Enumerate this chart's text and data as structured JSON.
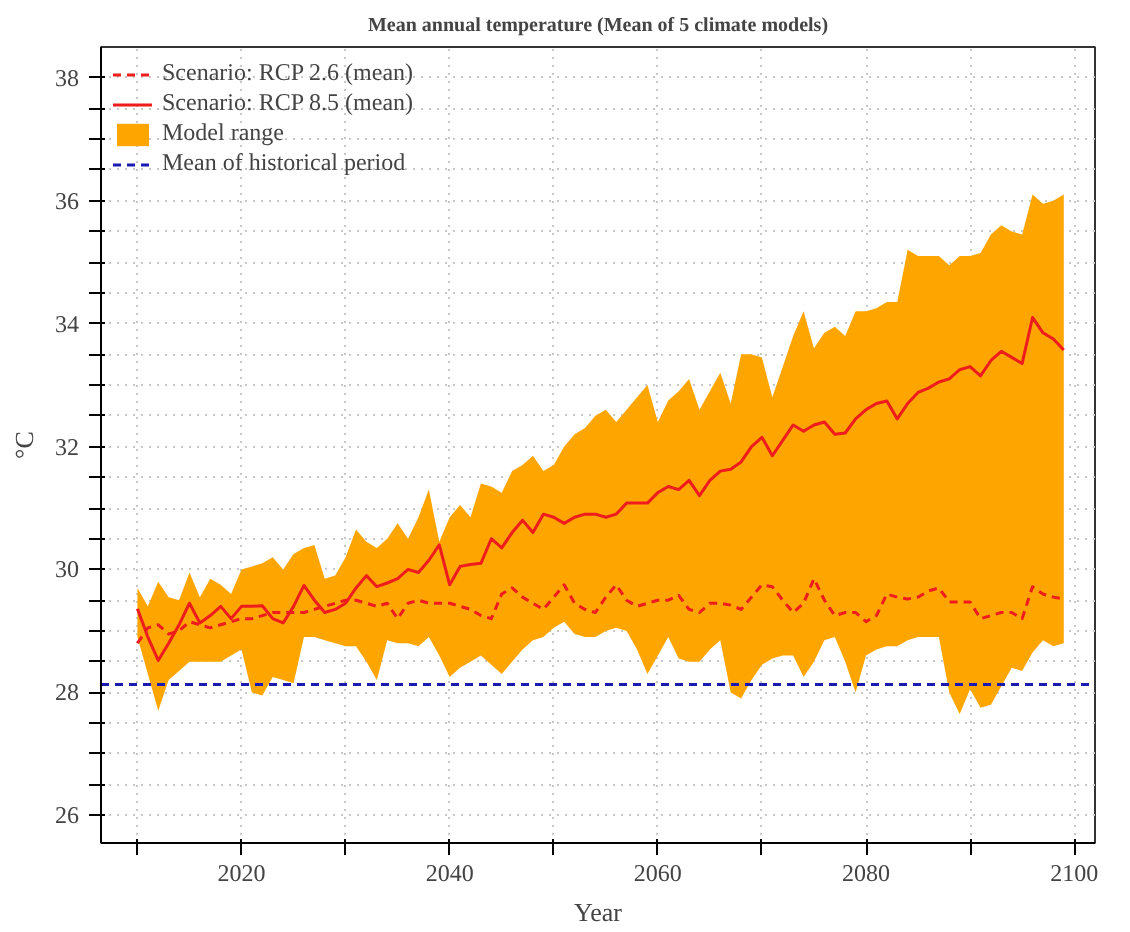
{
  "chart_data": {
    "type": "line",
    "title": "Mean annual temperature (Mean of 5 climate models)",
    "xlabel": "Year",
    "ylabel": "°C",
    "x": [
      2010,
      2011,
      2012,
      2013,
      2014,
      2015,
      2016,
      2017,
      2018,
      2019,
      2020,
      2021,
      2022,
      2023,
      2024,
      2025,
      2026,
      2027,
      2028,
      2029,
      2030,
      2031,
      2032,
      2033,
      2034,
      2035,
      2036,
      2037,
      2038,
      2039,
      2040,
      2041,
      2042,
      2043,
      2044,
      2045,
      2046,
      2047,
      2048,
      2049,
      2050,
      2051,
      2052,
      2053,
      2054,
      2055,
      2056,
      2057,
      2058,
      2059,
      2060,
      2061,
      2062,
      2063,
      2064,
      2065,
      2066,
      2067,
      2068,
      2069,
      2070,
      2071,
      2072,
      2073,
      2074,
      2075,
      2076,
      2077,
      2078,
      2079,
      2080,
      2081,
      2082,
      2083,
      2084,
      2085,
      2086,
      2087,
      2088,
      2089,
      2090,
      2091,
      2092,
      2093,
      2094,
      2095,
      2096,
      2097,
      2098,
      2099
    ],
    "series": [
      {
        "name": "Scenario: RCP 2.6 (mean)",
        "color": "#ee1c1c",
        "line_style": "dashed",
        "values": [
          28.8,
          29.05,
          29.1,
          28.95,
          29.0,
          29.15,
          29.1,
          29.05,
          29.1,
          29.15,
          29.2,
          29.2,
          29.25,
          29.3,
          29.3,
          29.3,
          29.3,
          29.35,
          29.4,
          29.45,
          29.5,
          29.5,
          29.45,
          29.4,
          29.45,
          29.2,
          29.45,
          29.5,
          29.45,
          29.45,
          29.45,
          29.4,
          29.35,
          29.25,
          29.2,
          29.6,
          29.7,
          29.55,
          29.45,
          29.35,
          29.55,
          29.75,
          29.45,
          29.35,
          29.3,
          29.55,
          29.75,
          29.5,
          29.4,
          29.45,
          29.5,
          29.5,
          29.58,
          29.35,
          29.3,
          29.45,
          29.45,
          29.42,
          29.35,
          29.55,
          29.75,
          29.72,
          29.5,
          29.3,
          29.45,
          29.85,
          29.5,
          29.25,
          29.3,
          29.3,
          29.15,
          29.25,
          29.6,
          29.55,
          29.52,
          29.55,
          29.65,
          29.7,
          29.47,
          29.47,
          29.47,
          29.2,
          29.25,
          29.3,
          29.3,
          29.2,
          29.72,
          29.6,
          29.55,
          29.52
        ]
      },
      {
        "name": "Scenario: RCP 8.5 (mean)",
        "color": "#ee1c1c",
        "line_style": "solid",
        "values": [
          29.36,
          28.9,
          28.52,
          28.8,
          29.1,
          29.45,
          29.13,
          29.25,
          29.4,
          29.2,
          29.4,
          29.4,
          29.41,
          29.2,
          29.13,
          29.4,
          29.74,
          29.5,
          29.3,
          29.35,
          29.45,
          29.7,
          29.9,
          29.72,
          29.78,
          29.85,
          30.0,
          29.95,
          30.15,
          30.4,
          29.75,
          30.05,
          30.08,
          30.1,
          30.5,
          30.35,
          30.6,
          30.8,
          30.6,
          30.9,
          30.85,
          30.75,
          30.85,
          30.9,
          30.9,
          30.85,
          30.9,
          31.08,
          31.08,
          31.08,
          31.25,
          31.35,
          31.3,
          31.45,
          31.2,
          31.45,
          31.6,
          31.63,
          31.75,
          32.0,
          32.15,
          31.85,
          32.1,
          32.35,
          32.25,
          32.35,
          32.4,
          32.2,
          32.22,
          32.45,
          32.6,
          32.7,
          32.74,
          32.45,
          32.7,
          32.88,
          32.95,
          33.05,
          33.1,
          33.25,
          33.3,
          33.15,
          33.4,
          33.55,
          33.45,
          33.35,
          34.1,
          33.85,
          33.75,
          33.57
        ]
      },
      {
        "name": "Model range",
        "type": "area",
        "color": "#ffa500",
        "values": [
          null,
          null,
          null,
          null,
          null,
          null,
          null,
          null,
          null,
          null,
          null,
          null,
          null,
          null,
          null,
          null,
          null,
          null,
          null,
          null,
          null,
          null,
          null,
          null,
          null,
          null,
          null,
          null,
          null,
          null,
          null,
          null,
          null,
          null,
          null,
          null,
          null,
          null,
          null,
          null,
          null,
          null,
          null,
          null,
          null,
          null,
          null,
          null,
          null,
          null,
          null,
          null,
          null,
          null,
          null,
          null,
          null,
          null,
          null,
          null,
          null,
          null,
          null,
          null,
          null,
          null,
          null,
          null,
          null,
          null,
          null,
          null,
          null,
          null,
          null,
          null,
          null,
          null,
          null,
          null,
          null,
          null,
          null,
          null,
          null,
          null,
          null,
          null,
          null,
          null
        ],
        "lower": [
          28.9,
          28.3,
          27.7,
          28.2,
          28.35,
          28.5,
          28.5,
          28.5,
          28.5,
          28.6,
          28.7,
          28.0,
          27.95,
          28.25,
          28.2,
          28.15,
          28.9,
          28.9,
          28.85,
          28.8,
          28.75,
          28.75,
          28.5,
          28.2,
          28.85,
          28.8,
          28.8,
          28.75,
          28.9,
          28.6,
          28.25,
          28.4,
          28.5,
          28.6,
          28.45,
          28.3,
          28.5,
          28.7,
          28.85,
          28.9,
          29.05,
          29.15,
          28.95,
          28.9,
          28.9,
          29.0,
          29.05,
          29.0,
          28.7,
          28.3,
          28.6,
          28.9,
          28.55,
          28.5,
          28.5,
          28.7,
          28.85,
          28.0,
          27.9,
          28.2,
          28.45,
          28.55,
          28.6,
          28.6,
          28.25,
          28.5,
          28.85,
          28.9,
          28.5,
          28.0,
          28.6,
          28.7,
          28.75,
          28.75,
          28.85,
          28.9,
          28.9,
          28.9,
          28.0,
          27.65,
          28.05,
          27.75,
          27.8,
          28.1,
          28.4,
          28.35,
          28.65,
          28.85,
          28.75,
          28.8
        ],
        "upper": [
          29.7,
          29.4,
          29.8,
          29.55,
          29.5,
          29.95,
          29.55,
          29.85,
          29.75,
          29.6,
          30.0,
          30.05,
          30.1,
          30.2,
          30.0,
          30.25,
          30.35,
          30.4,
          29.85,
          29.9,
          30.2,
          30.65,
          30.45,
          30.35,
          30.5,
          30.75,
          30.5,
          30.85,
          31.3,
          30.45,
          30.85,
          31.05,
          30.85,
          31.4,
          31.35,
          31.25,
          31.6,
          31.7,
          31.85,
          31.6,
          31.7,
          32.0,
          32.2,
          32.3,
          32.5,
          32.6,
          32.4,
          32.6,
          32.8,
          33.0,
          32.4,
          32.75,
          32.9,
          33.1,
          32.6,
          32.9,
          33.2,
          32.7,
          33.5,
          33.5,
          33.45,
          32.8,
          33.3,
          33.8,
          34.2,
          33.6,
          33.85,
          33.95,
          33.8,
          34.2,
          34.2,
          34.25,
          34.35,
          34.35,
          35.2,
          35.1,
          35.1,
          35.1,
          34.95,
          35.1,
          35.1,
          35.15,
          35.45,
          35.6,
          35.5,
          35.45,
          36.1,
          35.95,
          36.0,
          36.1
        ]
      }
    ],
    "ref_lines": [
      {
        "axis": "y",
        "value": 28.13,
        "label": "Mean of historical period",
        "color": "#1a1ab0",
        "line_style": "dashed"
      }
    ],
    "xlim": [
      2006.5,
      2102
    ],
    "ylim": [
      25.55,
      38.5
    ],
    "xticks": [
      {
        "value": 2010,
        "label": null
      },
      2020,
      {
        "value": 2030,
        "label": null
      },
      2040,
      {
        "value": 2050,
        "label": null
      },
      2060,
      {
        "value": 2070,
        "label": null
      },
      2080,
      {
        "value": 2090,
        "label": null
      },
      2100
    ],
    "yticks": [
      26,
      {
        "value": 26.5,
        "label": null
      },
      {
        "value": 27,
        "label": null
      },
      {
        "value": 27.5,
        "label": null
      },
      28,
      {
        "value": 28.5,
        "label": null
      },
      {
        "value": 29,
        "label": null
      },
      {
        "value": 29.5,
        "label": null
      },
      30,
      {
        "value": 30.5,
        "label": null
      },
      {
        "value": 31,
        "label": null
      },
      {
        "value": 31.5,
        "label": null
      },
      32,
      {
        "value": 32.5,
        "label": null
      },
      {
        "value": 33,
        "label": null
      },
      {
        "value": 33.5,
        "label": null
      },
      34,
      {
        "value": 34.5,
        "label": null
      },
      {
        "value": 35,
        "label": null
      },
      {
        "value": 35.5,
        "label": null
      },
      36,
      {
        "value": 36.5,
        "label": null
      },
      {
        "value": 37,
        "label": null
      },
      {
        "value": 37.5,
        "label": null
      },
      38
    ],
    "grid": true,
    "legend": "top left"
  }
}
